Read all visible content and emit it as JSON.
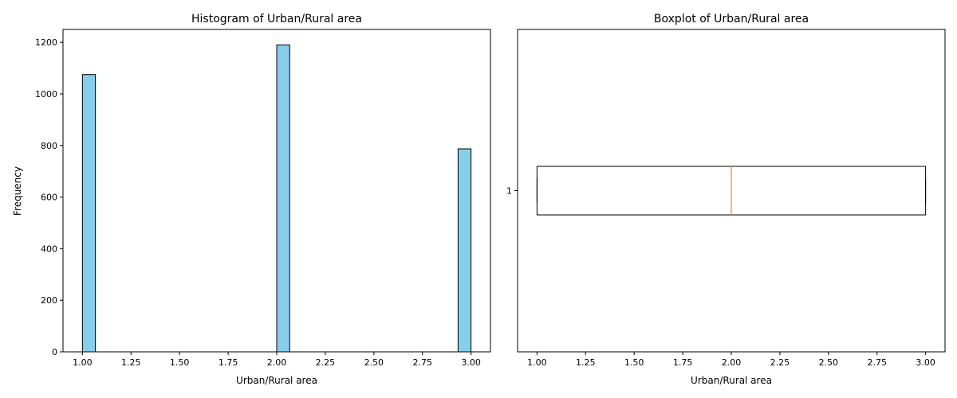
{
  "chart_data": [
    {
      "type": "bar",
      "title": "Histogram of Urban/Rural area",
      "xlabel": "Urban/Rural area",
      "ylabel": "Frequency",
      "xlim": [
        0.9,
        3.1
      ],
      "ylim": [
        0,
        1250
      ],
      "xticks": [
        1.0,
        1.25,
        1.5,
        1.75,
        2.0,
        2.25,
        2.5,
        2.75,
        3.0
      ],
      "xtick_labels": [
        "1.00",
        "1.25",
        "1.50",
        "1.75",
        "2.00",
        "2.25",
        "2.50",
        "2.75",
        "3.00"
      ],
      "yticks": [
        0,
        200,
        400,
        600,
        800,
        1000,
        1200
      ],
      "ytick_labels": [
        "0",
        "200",
        "400",
        "600",
        "800",
        "1000",
        "1200"
      ],
      "bars": [
        {
          "x0": 1.0,
          "x1": 1.0667,
          "value": 1075
        },
        {
          "x0": 2.0,
          "x1": 2.0667,
          "value": 1190
        },
        {
          "x0": 2.9333,
          "x1": 3.0,
          "value": 787
        }
      ],
      "bar_color": "#87ceeb",
      "edge_color": "#000000",
      "grid": false
    },
    {
      "type": "boxplot",
      "title": "Boxplot of Urban/Rural area",
      "xlabel": "Urban/Rural area",
      "ylabel": "",
      "orientation": "horizontal",
      "xlim": [
        0.9,
        3.1
      ],
      "xticks": [
        1.0,
        1.25,
        1.5,
        1.75,
        2.0,
        2.25,
        2.5,
        2.75,
        3.0
      ],
      "xtick_labels": [
        "1.00",
        "1.25",
        "1.50",
        "1.75",
        "2.00",
        "2.25",
        "2.50",
        "2.75",
        "3.00"
      ],
      "categories": [
        "1"
      ],
      "box": {
        "min": 1.0,
        "q1": 1.0,
        "median": 2.0,
        "q3": 3.0,
        "max": 3.0
      },
      "median_color": "#ff7f0e",
      "grid": false
    }
  ]
}
